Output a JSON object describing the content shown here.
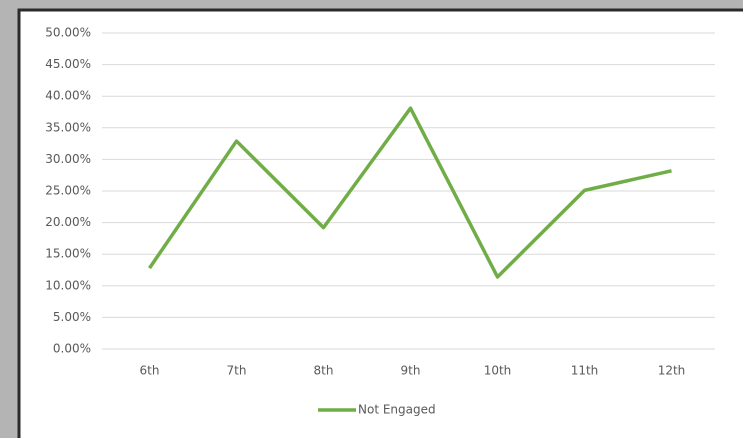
{
  "chart_data": {
    "type": "line",
    "categories": [
      "6th",
      "7th",
      "8th",
      "9th",
      "10th",
      "11th",
      "12th"
    ],
    "series": [
      {
        "name": "Not Engaged",
        "color": "#70ad47",
        "values": [
          12.8,
          32.9,
          19.2,
          38.1,
          11.4,
          25.1,
          28.2
        ]
      }
    ],
    "ylim": [
      0,
      50
    ],
    "yticks": [
      {
        "value": 0,
        "label": "0.00%"
      },
      {
        "value": 5,
        "label": "5.00%"
      },
      {
        "value": 10,
        "label": "10.00%"
      },
      {
        "value": 15,
        "label": "15.00%"
      },
      {
        "value": 20,
        "label": "20.00%"
      },
      {
        "value": 25,
        "label": "25.00%"
      },
      {
        "value": 30,
        "label": "30.00%"
      },
      {
        "value": 35,
        "label": "35.00%"
      },
      {
        "value": 40,
        "label": "40.00%"
      },
      {
        "value": 45,
        "label": "45.00%"
      },
      {
        "value": 50,
        "label": "50.00%"
      }
    ],
    "grid": true,
    "legend": "bottom"
  }
}
